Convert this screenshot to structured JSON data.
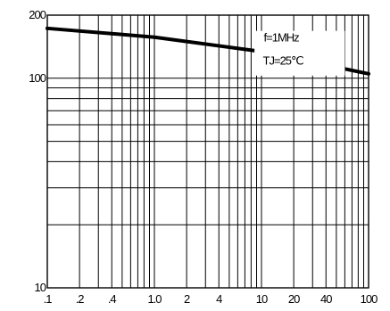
{
  "chart_data": {
    "type": "line",
    "title": "",
    "xlabel": "",
    "ylabel": "",
    "x_scale": "log",
    "y_scale": "log",
    "xlim": [
      0.1,
      100
    ],
    "ylim": [
      10,
      200
    ],
    "grid": true,
    "x_ticks": [
      {
        "value": 0.1,
        "label": ".1"
      },
      {
        "value": 0.2,
        "label": ".2"
      },
      {
        "value": 0.4,
        "label": ".4"
      },
      {
        "value": 1,
        "label": "1.0"
      },
      {
        "value": 2,
        "label": "2"
      },
      {
        "value": 4,
        "label": "4"
      },
      {
        "value": 10,
        "label": "10"
      },
      {
        "value": 20,
        "label": "20"
      },
      {
        "value": 40,
        "label": "40"
      },
      {
        "value": 100,
        "label": "100"
      }
    ],
    "y_ticks": [
      {
        "value": 10,
        "label": "10"
      },
      {
        "value": 100,
        "label": "100"
      },
      {
        "value": 200,
        "label": "200"
      }
    ],
    "annotation": {
      "line1": "f=1MHz",
      "line2": "TJ=25℃"
    },
    "series": [
      {
        "x": [
          0.1,
          1,
          10,
          100
        ],
        "y": [
          173,
          157,
          134,
          105
        ],
        "color": "#000000"
      }
    ]
  }
}
